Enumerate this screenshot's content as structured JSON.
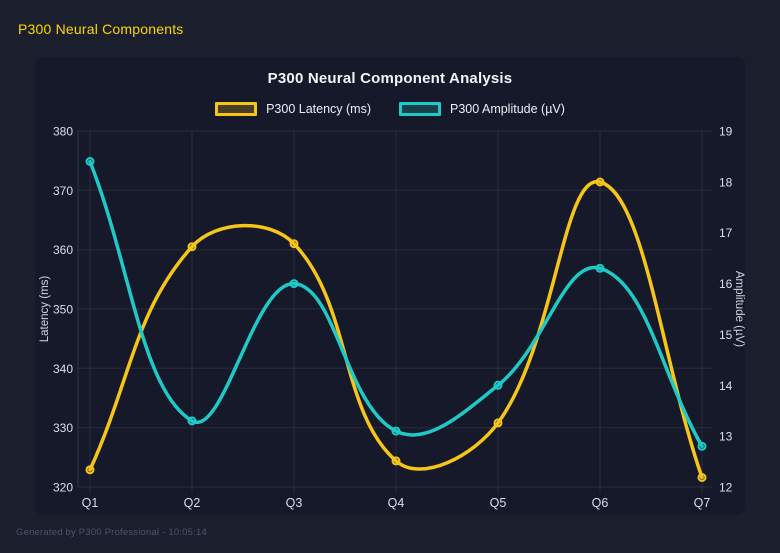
{
  "page": {
    "title": "P300 Neural Components",
    "footer": "Generated by P300 Professional - 10:05:14"
  },
  "colors": {
    "background": "#1b1e2d",
    "card_background": "#16192a",
    "title_accent": "#ffd700",
    "chart_title_text": "#f2f4f9",
    "tick_text": "#dbdfe9",
    "axis_title_text": "#d2d6e2",
    "grid": "rgba(255,255,255,0.08)",
    "footer_text": "#4e566b",
    "latency_color": "#f5c518",
    "amplitude_color": "#1ec9c6"
  },
  "chart_data": {
    "type": "line",
    "title": "P300 Neural Component Analysis",
    "categories": [
      "Q1",
      "Q2",
      "Q3",
      "Q4",
      "Q5",
      "Q6",
      "Q7"
    ],
    "series": [
      {
        "name": "P300 Latency (ms)",
        "axis": "left",
        "color": "#f5c518",
        "values": [
          322.9,
          360.5,
          361.0,
          324.4,
          330.8,
          371.4,
          321.6
        ]
      },
      {
        "name": "P300 Amplitude (µV)",
        "axis": "right",
        "color": "#1ec9c6",
        "values": [
          18.4,
          13.3,
          16.0,
          13.1,
          14.0,
          16.3,
          12.8
        ]
      }
    ],
    "left_axis": {
      "label": "Latency (ms)",
      "min": 320,
      "max": 380,
      "ticks": [
        320,
        330,
        340,
        350,
        360,
        370,
        380
      ]
    },
    "right_axis": {
      "label": "Amplitude (µV)",
      "min": 12,
      "max": 19,
      "ticks": [
        12,
        13,
        14,
        15,
        16,
        17,
        18,
        19
      ]
    },
    "legend_position": "top",
    "grid": true,
    "line_tension": 0.4,
    "point_style": "circle"
  }
}
